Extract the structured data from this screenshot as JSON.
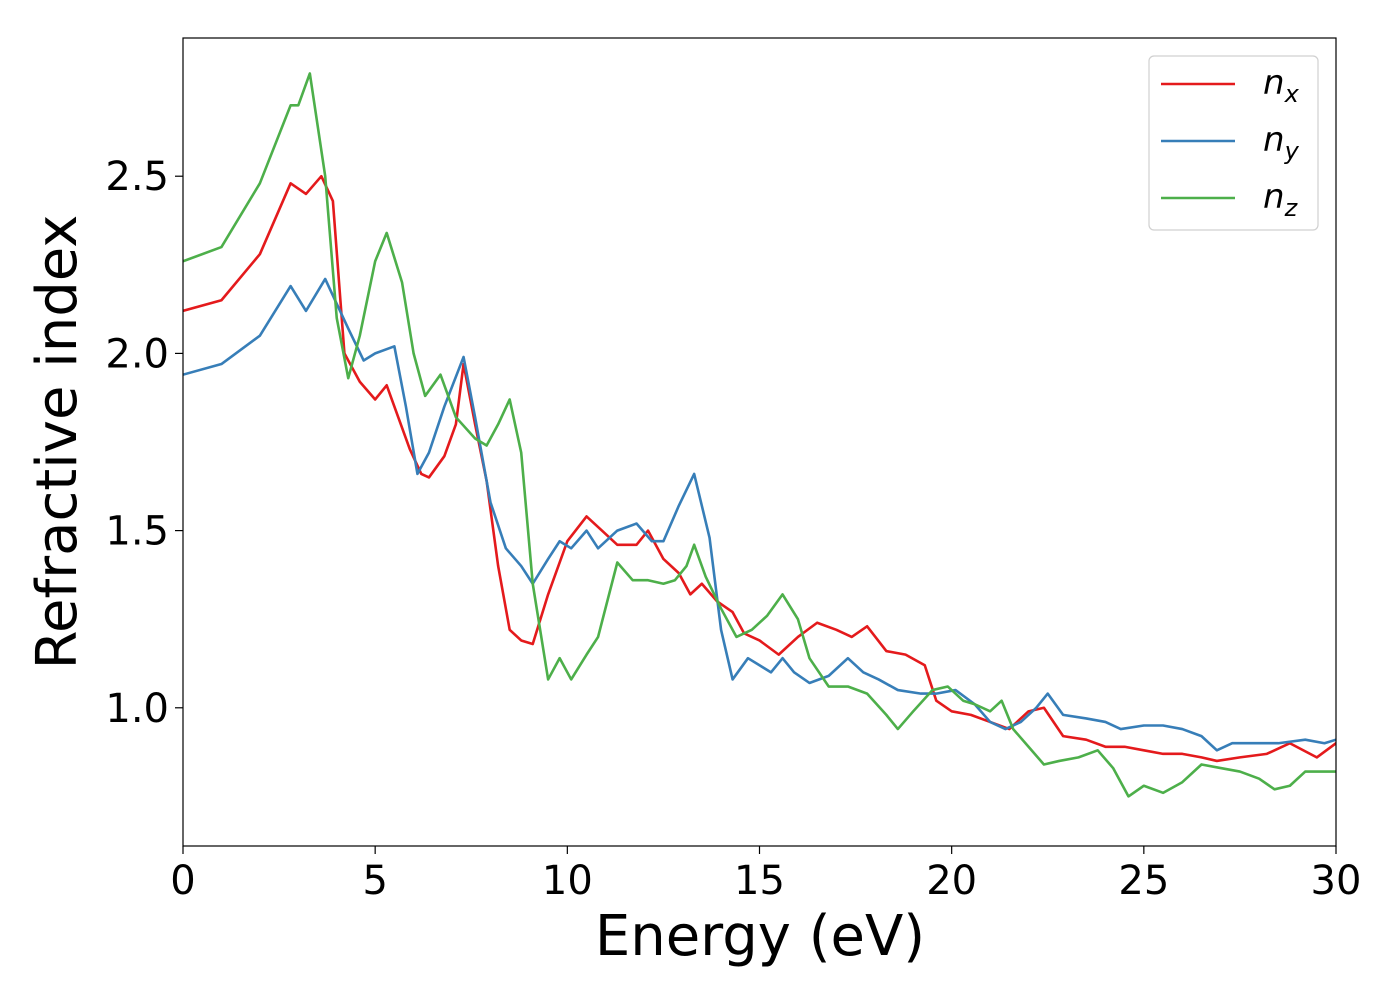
{
  "chart_data": {
    "type": "line",
    "title": "",
    "xlabel": "Energy (eV)",
    "ylabel": "Refractive index",
    "xlim": [
      0,
      30
    ],
    "ylim": [
      0.61,
      2.89
    ],
    "xticks": [
      0,
      5,
      10,
      15,
      20,
      25,
      30
    ],
    "xtick_labels": [
      "0",
      "5",
      "10",
      "15",
      "20",
      "25",
      "30"
    ],
    "yticks": [
      1.0,
      1.5,
      2.0,
      2.5
    ],
    "ytick_labels": [
      "1.0",
      "1.5",
      "2.0",
      "2.5"
    ],
    "grid": false,
    "legend_position": "top-right",
    "series": [
      {
        "name": "n_x",
        "legend_main": "n",
        "legend_sub": "x",
        "color": "#e41a1c",
        "points": [
          [
            0,
            2.12
          ],
          [
            1,
            2.15
          ],
          [
            2,
            2.28
          ],
          [
            2.8,
            2.48
          ],
          [
            3.2,
            2.45
          ],
          [
            3.6,
            2.5
          ],
          [
            3.9,
            2.43
          ],
          [
            4.2,
            2.0
          ],
          [
            4.6,
            1.92
          ],
          [
            5.0,
            1.87
          ],
          [
            5.3,
            1.91
          ],
          [
            5.6,
            1.82
          ],
          [
            5.9,
            1.73
          ],
          [
            6.2,
            1.66
          ],
          [
            6.4,
            1.65
          ],
          [
            6.8,
            1.71
          ],
          [
            7.1,
            1.8
          ],
          [
            7.3,
            1.97
          ],
          [
            7.6,
            1.8
          ],
          [
            7.9,
            1.64
          ],
          [
            8.2,
            1.4
          ],
          [
            8.5,
            1.22
          ],
          [
            8.8,
            1.19
          ],
          [
            9.1,
            1.18
          ],
          [
            9.5,
            1.32
          ],
          [
            10.0,
            1.47
          ],
          [
            10.5,
            1.54
          ],
          [
            10.9,
            1.5
          ],
          [
            11.3,
            1.46
          ],
          [
            11.8,
            1.46
          ],
          [
            12.1,
            1.5
          ],
          [
            12.5,
            1.42
          ],
          [
            12.9,
            1.38
          ],
          [
            13.2,
            1.32
          ],
          [
            13.5,
            1.35
          ],
          [
            13.9,
            1.3
          ],
          [
            14.3,
            1.27
          ],
          [
            14.6,
            1.21
          ],
          [
            15.0,
            1.19
          ],
          [
            15.5,
            1.15
          ],
          [
            16.0,
            1.2
          ],
          [
            16.5,
            1.24
          ],
          [
            17.0,
            1.22
          ],
          [
            17.4,
            1.2
          ],
          [
            17.8,
            1.23
          ],
          [
            18.3,
            1.16
          ],
          [
            18.8,
            1.15
          ],
          [
            19.3,
            1.12
          ],
          [
            19.6,
            1.02
          ],
          [
            20.0,
            0.99
          ],
          [
            20.5,
            0.98
          ],
          [
            21.0,
            0.96
          ],
          [
            21.5,
            0.94
          ],
          [
            22.0,
            0.99
          ],
          [
            22.4,
            1.0
          ],
          [
            22.9,
            0.92
          ],
          [
            23.5,
            0.91
          ],
          [
            24.0,
            0.89
          ],
          [
            24.5,
            0.89
          ],
          [
            25.0,
            0.88
          ],
          [
            25.5,
            0.87
          ],
          [
            26.0,
            0.87
          ],
          [
            26.5,
            0.86
          ],
          [
            26.9,
            0.85
          ],
          [
            27.5,
            0.86
          ],
          [
            28.2,
            0.87
          ],
          [
            28.8,
            0.9
          ],
          [
            29.5,
            0.86
          ],
          [
            30,
            0.9
          ]
        ]
      },
      {
        "name": "n_y",
        "legend_main": "n",
        "legend_sub": "y",
        "color": "#377eb8",
        "points": [
          [
            0,
            1.94
          ],
          [
            1,
            1.97
          ],
          [
            2,
            2.05
          ],
          [
            2.8,
            2.19
          ],
          [
            3.2,
            2.12
          ],
          [
            3.7,
            2.21
          ],
          [
            4.0,
            2.14
          ],
          [
            4.3,
            2.07
          ],
          [
            4.7,
            1.98
          ],
          [
            5.0,
            2.0
          ],
          [
            5.5,
            2.02
          ],
          [
            5.8,
            1.85
          ],
          [
            6.1,
            1.66
          ],
          [
            6.4,
            1.72
          ],
          [
            6.8,
            1.85
          ],
          [
            7.3,
            1.99
          ],
          [
            7.6,
            1.82
          ],
          [
            8.0,
            1.58
          ],
          [
            8.4,
            1.45
          ],
          [
            8.8,
            1.4
          ],
          [
            9.1,
            1.35
          ],
          [
            9.5,
            1.42
          ],
          [
            9.8,
            1.47
          ],
          [
            10.1,
            1.45
          ],
          [
            10.5,
            1.5
          ],
          [
            10.8,
            1.45
          ],
          [
            11.3,
            1.5
          ],
          [
            11.8,
            1.52
          ],
          [
            12.2,
            1.47
          ],
          [
            12.5,
            1.47
          ],
          [
            12.9,
            1.57
          ],
          [
            13.3,
            1.66
          ],
          [
            13.7,
            1.48
          ],
          [
            14.0,
            1.22
          ],
          [
            14.3,
            1.08
          ],
          [
            14.7,
            1.14
          ],
          [
            15.0,
            1.12
          ],
          [
            15.3,
            1.1
          ],
          [
            15.6,
            1.14
          ],
          [
            15.9,
            1.1
          ],
          [
            16.3,
            1.07
          ],
          [
            16.8,
            1.09
          ],
          [
            17.3,
            1.14
          ],
          [
            17.7,
            1.1
          ],
          [
            18.1,
            1.08
          ],
          [
            18.6,
            1.05
          ],
          [
            19.2,
            1.04
          ],
          [
            19.6,
            1.04
          ],
          [
            20.1,
            1.05
          ],
          [
            20.6,
            1.01
          ],
          [
            21.0,
            0.96
          ],
          [
            21.4,
            0.94
          ],
          [
            21.8,
            0.96
          ],
          [
            22.2,
            1.0
          ],
          [
            22.5,
            1.04
          ],
          [
            22.9,
            0.98
          ],
          [
            23.5,
            0.97
          ],
          [
            24.0,
            0.96
          ],
          [
            24.4,
            0.94
          ],
          [
            25.0,
            0.95
          ],
          [
            25.5,
            0.95
          ],
          [
            26.0,
            0.94
          ],
          [
            26.5,
            0.92
          ],
          [
            26.9,
            0.88
          ],
          [
            27.3,
            0.9
          ],
          [
            28.0,
            0.9
          ],
          [
            28.5,
            0.9
          ],
          [
            29.2,
            0.91
          ],
          [
            29.7,
            0.9
          ],
          [
            30,
            0.91
          ]
        ]
      },
      {
        "name": "n_z",
        "legend_main": "n",
        "legend_sub": "z",
        "color": "#4daf4a",
        "points": [
          [
            0,
            2.26
          ],
          [
            1,
            2.3
          ],
          [
            2,
            2.48
          ],
          [
            2.8,
            2.7
          ],
          [
            3.0,
            2.7
          ],
          [
            3.3,
            2.79
          ],
          [
            3.7,
            2.5
          ],
          [
            4.0,
            2.1
          ],
          [
            4.3,
            1.93
          ],
          [
            4.6,
            2.05
          ],
          [
            5.0,
            2.26
          ],
          [
            5.3,
            2.34
          ],
          [
            5.7,
            2.2
          ],
          [
            6.0,
            2.0
          ],
          [
            6.3,
            1.88
          ],
          [
            6.7,
            1.94
          ],
          [
            7.1,
            1.82
          ],
          [
            7.6,
            1.76
          ],
          [
            7.9,
            1.74
          ],
          [
            8.2,
            1.8
          ],
          [
            8.5,
            1.87
          ],
          [
            8.8,
            1.72
          ],
          [
            9.1,
            1.35
          ],
          [
            9.5,
            1.08
          ],
          [
            9.8,
            1.14
          ],
          [
            10.1,
            1.08
          ],
          [
            10.5,
            1.15
          ],
          [
            10.8,
            1.2
          ],
          [
            11.3,
            1.41
          ],
          [
            11.7,
            1.36
          ],
          [
            12.1,
            1.36
          ],
          [
            12.5,
            1.35
          ],
          [
            12.8,
            1.36
          ],
          [
            13.1,
            1.4
          ],
          [
            13.3,
            1.46
          ],
          [
            13.6,
            1.37
          ],
          [
            14.0,
            1.28
          ],
          [
            14.4,
            1.2
          ],
          [
            14.8,
            1.22
          ],
          [
            15.2,
            1.26
          ],
          [
            15.6,
            1.32
          ],
          [
            16.0,
            1.25
          ],
          [
            16.3,
            1.14
          ],
          [
            16.8,
            1.06
          ],
          [
            17.3,
            1.06
          ],
          [
            17.8,
            1.04
          ],
          [
            18.3,
            0.98
          ],
          [
            18.6,
            0.94
          ],
          [
            19.0,
            0.99
          ],
          [
            19.5,
            1.05
          ],
          [
            19.9,
            1.06
          ],
          [
            20.3,
            1.02
          ],
          [
            20.6,
            1.01
          ],
          [
            21.0,
            0.99
          ],
          [
            21.3,
            1.02
          ],
          [
            21.6,
            0.94
          ],
          [
            22.0,
            0.89
          ],
          [
            22.4,
            0.84
          ],
          [
            22.8,
            0.85
          ],
          [
            23.3,
            0.86
          ],
          [
            23.8,
            0.88
          ],
          [
            24.2,
            0.83
          ],
          [
            24.6,
            0.75
          ],
          [
            25.0,
            0.78
          ],
          [
            25.5,
            0.76
          ],
          [
            26.0,
            0.79
          ],
          [
            26.5,
            0.84
          ],
          [
            27.0,
            0.83
          ],
          [
            27.5,
            0.82
          ],
          [
            28.0,
            0.8
          ],
          [
            28.4,
            0.77
          ],
          [
            28.8,
            0.78
          ],
          [
            29.2,
            0.82
          ],
          [
            29.7,
            0.82
          ],
          [
            30,
            0.82
          ]
        ]
      }
    ]
  }
}
